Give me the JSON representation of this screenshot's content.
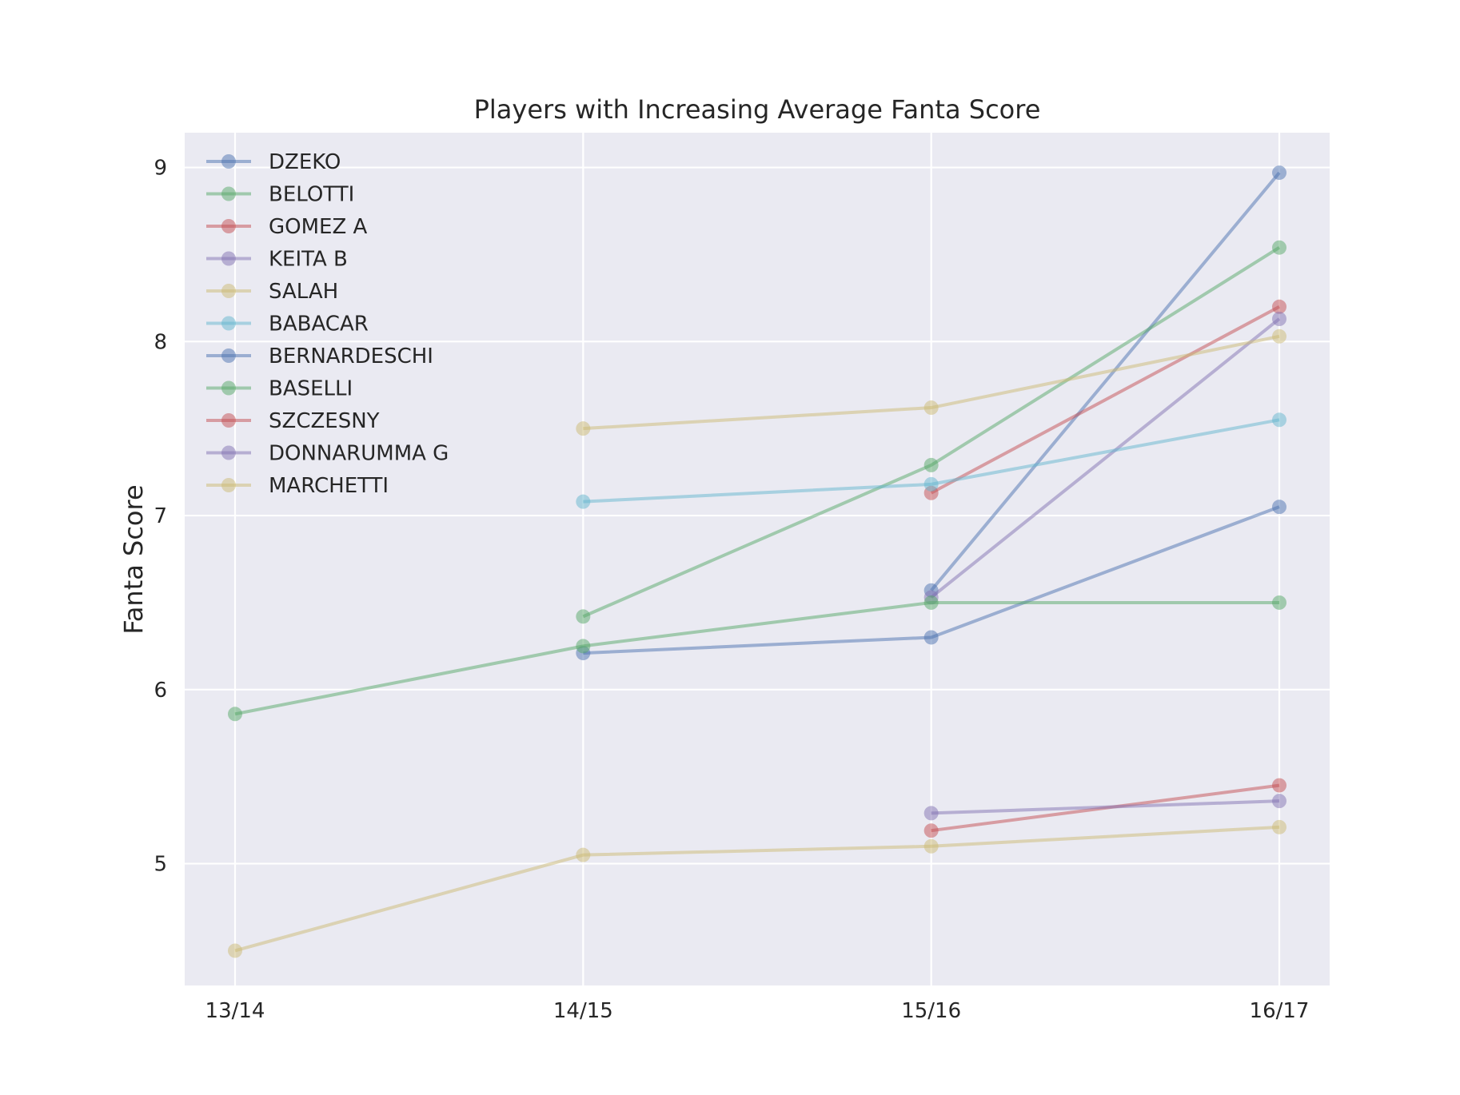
{
  "chart_data": {
    "type": "line",
    "title": "Players with Increasing Average Fanta Score",
    "xlabel": "",
    "ylabel": "Fanta Score",
    "x": [
      "13/14",
      "14/15",
      "15/16",
      "16/17"
    ],
    "y_ticks": [
      5,
      6,
      7,
      8,
      9
    ],
    "ylim": [
      4.3,
      9.2
    ],
    "grid": true,
    "legend_position": "top-left",
    "series": [
      {
        "name": "DZEKO",
        "color": "#4C72B0",
        "values": [
          null,
          null,
          6.57,
          8.97
        ]
      },
      {
        "name": "BELOTTI",
        "color": "#55A868",
        "values": [
          null,
          6.42,
          7.29,
          8.54
        ]
      },
      {
        "name": "GOMEZ A",
        "color": "#C44E52",
        "values": [
          null,
          null,
          7.13,
          8.2
        ]
      },
      {
        "name": "KEITA B",
        "color": "#8172B2",
        "values": [
          null,
          null,
          6.53,
          8.13
        ]
      },
      {
        "name": "SALAH",
        "color": "#CCB974",
        "values": [
          null,
          7.5,
          7.62,
          8.03
        ]
      },
      {
        "name": "BABACAR",
        "color": "#64B5CD",
        "values": [
          null,
          7.08,
          7.18,
          7.55
        ]
      },
      {
        "name": "BERNARDESCHI",
        "color": "#4C72B0",
        "values": [
          null,
          6.21,
          6.3,
          7.05
        ]
      },
      {
        "name": "BASELLI",
        "color": "#55A868",
        "values": [
          5.86,
          6.25,
          6.5,
          6.5
        ]
      },
      {
        "name": "SZCZESNY",
        "color": "#C44E52",
        "values": [
          null,
          null,
          5.19,
          5.45
        ]
      },
      {
        "name": "DONNARUMMA G",
        "color": "#8172B2",
        "values": [
          null,
          null,
          5.29,
          5.36
        ]
      },
      {
        "name": "MARCHETTI",
        "color": "#CCB974",
        "values": [
          4.5,
          5.05,
          5.1,
          5.21
        ]
      }
    ]
  }
}
